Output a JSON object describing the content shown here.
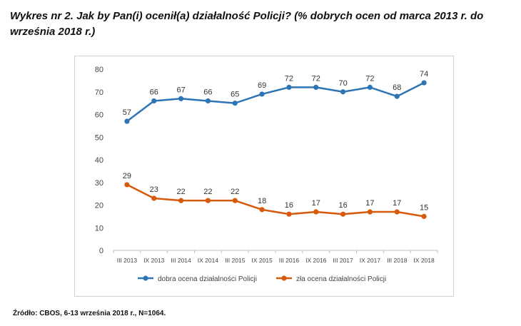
{
  "title": "Wykres nr 2. Jak by Pan(i) ocenił(a) działalność Policji? (% dobrych ocen od marca 2013 r. do września 2018 r.)",
  "source": "Źródło: CBOS, 6-13 września 2018 r., N=1064.",
  "chart_data": {
    "type": "line",
    "title": "",
    "xlabel": "",
    "ylabel": "",
    "ylim": [
      0,
      80
    ],
    "yticks": [
      0,
      10,
      20,
      30,
      40,
      50,
      60,
      70,
      80
    ],
    "grid": false,
    "legend": "bottom",
    "categories": [
      "III 2013",
      "IX 2013",
      "III 2014",
      "IX 2014",
      "III 2015",
      "IX 2015",
      "III 2016",
      "IX 2016",
      "III 2017",
      "IX 2017",
      "III 2018",
      "IX 2018"
    ],
    "series": [
      {
        "name": "dobra ocena działalności Policji",
        "color": "#2e75b6",
        "values": [
          57,
          66,
          67,
          66,
          65,
          69,
          72,
          72,
          70,
          72,
          68,
          74
        ]
      },
      {
        "name": "zła ocena działalności Policji",
        "color": "#d55a0b",
        "values": [
          29,
          23,
          22,
          22,
          22,
          18,
          16,
          17,
          16,
          17,
          17,
          15
        ]
      }
    ]
  }
}
